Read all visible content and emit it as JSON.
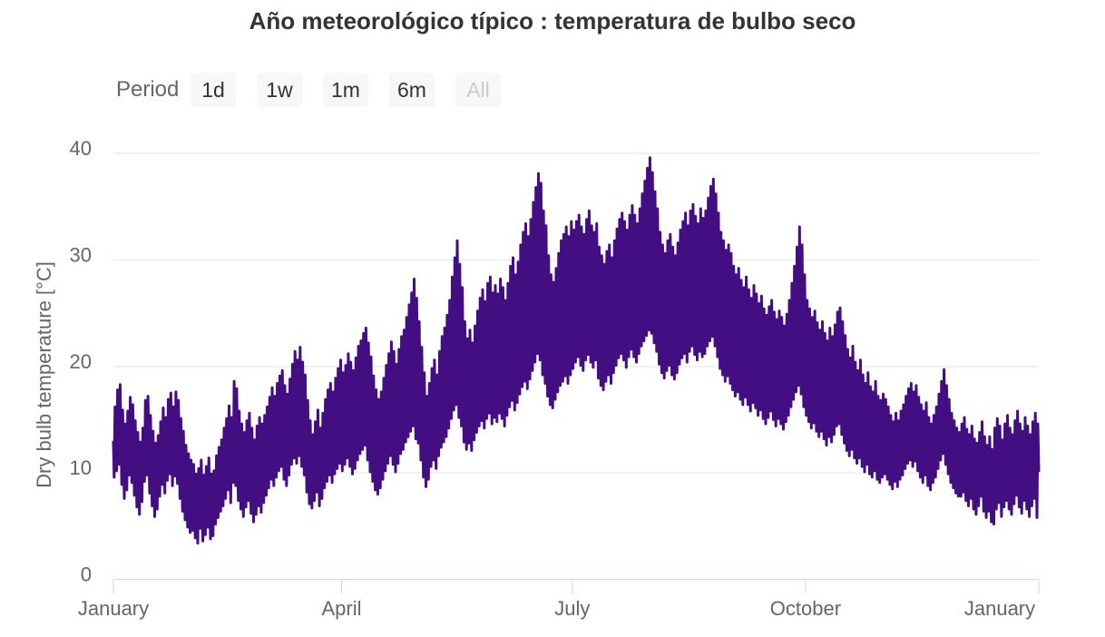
{
  "range_selector": {
    "label": "Period",
    "buttons": [
      {
        "label": "1d",
        "enabled": true
      },
      {
        "label": "1w",
        "enabled": true
      },
      {
        "label": "1m",
        "enabled": true
      },
      {
        "label": "6m",
        "enabled": true
      },
      {
        "label": "All",
        "enabled": false
      }
    ]
  },
  "colors": {
    "series": "#440E83",
    "grid": "#E6E6E6",
    "axis_line": "#CCD6EB",
    "tick_text": "#666666",
    "title_text": "#333333",
    "button_bg": "#F7F7F7",
    "button_text": "#333333",
    "button_disabled_text": "#CCCCCC",
    "background": "#FFFFFF"
  },
  "chart_data": {
    "type": "line",
    "title": "Año meteorológico típico : temperatura de bulbo seco",
    "xlabel": "",
    "ylabel": "Dry bulb temperature [°C]",
    "legend": "none",
    "grid": "horizontal-gridlines",
    "y_ticks": [
      0,
      10,
      20,
      30,
      40
    ],
    "ylim": [
      0,
      42
    ],
    "x_tick_labels": [
      "January",
      "April",
      "July",
      "October",
      "January"
    ],
    "x_tick_days": [
      0,
      90,
      181,
      273,
      365
    ],
    "x_range_days": 365,
    "series": [
      {
        "name": "Dry bulb temperature",
        "unit": "°C",
        "color": "#440E83",
        "description": "Hourly dry bulb temperature over a typical meteorological year; rendered from daily low/high envelope (one low + one high per day, index 0 = Jan 1)",
        "daily_high": [
          16.2,
          17.8,
          18.3,
          15.9,
          14.6,
          15.8,
          17.1,
          16.4,
          14.9,
          13.8,
          12.9,
          14.2,
          16.8,
          17.2,
          15.4,
          13.9,
          12.8,
          13.5,
          14.8,
          16.1,
          15.2,
          16.9,
          17.5,
          16.2,
          17.6,
          16.8,
          15.1,
          13.9,
          12.6,
          11.8,
          11.2,
          10.8,
          9.9,
          10.4,
          11.2,
          9.8,
          10.6,
          11.4,
          9.9,
          10.2,
          11.6,
          12.4,
          13.1,
          14.2,
          15.1,
          16.3,
          15.2,
          18.6,
          17.9,
          15.8,
          14.6,
          13.8,
          14.9,
          15.6,
          14.2,
          13.1,
          14.4,
          15.2,
          14.6,
          15.4,
          16.2,
          17.1,
          18.0,
          17.2,
          18.4,
          19.1,
          19.6,
          18.2,
          17.4,
          18.8,
          20.2,
          21.4,
          20.6,
          21.8,
          20.4,
          19.2,
          16.8,
          14.9,
          13.6,
          14.8,
          15.9,
          14.2,
          15.6,
          16.9,
          17.8,
          18.4,
          17.6,
          18.9,
          19.8,
          20.6,
          19.4,
          20.1,
          21.2,
          20.4,
          19.6,
          20.8,
          21.9,
          22.4,
          23.1,
          23.6,
          22.2,
          20.9,
          19.1,
          17.8,
          16.9,
          17.6,
          18.9,
          20.1,
          21.2,
          22.3,
          21.4,
          20.2,
          21.6,
          22.8,
          23.4,
          24.6,
          25.8,
          26.9,
          28.2,
          26.4,
          24.2,
          21.8,
          19.4,
          17.2,
          18.4,
          19.8,
          20.6,
          19.2,
          21.4,
          22.8,
          23.6,
          24.8,
          26.2,
          28.4,
          30.2,
          31.8,
          29.6,
          27.4,
          24.2,
          22.6,
          23.4,
          22.2,
          23.8,
          25.2,
          26.4,
          27.2,
          26.1,
          27.8,
          28.4,
          26.9,
          27.6,
          26.8,
          28.2,
          27.4,
          26.2,
          27.8,
          29.4,
          30.2,
          28.6,
          29.8,
          31.4,
          32.6,
          33.4,
          32.2,
          33.8,
          35.4,
          36.8,
          38.1,
          37.2,
          34.6,
          33.2,
          30.4,
          28.6,
          27.9,
          29.2,
          30.6,
          31.8,
          32.4,
          33.1,
          32.2,
          33.6,
          32.8,
          33.6,
          34.2,
          33.1,
          32.4,
          33.8,
          34.6,
          33.2,
          32.6,
          33.4,
          31.2,
          30.4,
          29.6,
          30.8,
          31.4,
          30.2,
          31.8,
          32.9,
          33.8,
          34.4,
          33.6,
          32.8,
          34.2,
          35.1,
          34.2,
          33.4,
          34.8,
          36.2,
          37.4,
          38.6,
          39.6,
          38.2,
          36.4,
          34.8,
          32.6,
          31.4,
          30.6,
          31.8,
          32.4,
          31.2,
          30.4,
          31.6,
          32.8,
          33.6,
          34.4,
          33.2,
          34.6,
          35.2,
          34.1,
          33.4,
          34.8,
          33.9,
          34.6,
          35.8,
          36.9,
          37.6,
          36.2,
          34.4,
          32.6,
          31.8,
          30.9,
          31.4,
          30.6,
          29.4,
          28.6,
          29.2,
          28.1,
          27.4,
          28.4,
          27.2,
          26.4,
          27.6,
          26.8,
          25.9,
          26.6,
          25.4,
          24.8,
          25.6,
          26.2,
          25.1,
          24.4,
          25.2,
          24.6,
          23.8,
          24.9,
          26.2,
          27.8,
          29.4,
          31.2,
          33.1,
          31.4,
          28.6,
          26.2,
          25.4,
          24.6,
          25.2,
          24.1,
          23.4,
          24.2,
          23.1,
          22.4,
          23.6,
          22.8,
          23.9,
          25.1,
          25.5,
          24.2,
          22.9,
          21.6,
          20.8,
          21.9,
          20.4,
          19.6,
          20.6,
          19.2,
          18.4,
          19.4,
          18.1,
          17.6,
          18.6,
          17.2,
          16.8,
          17.4,
          16.9,
          16.2,
          15.4,
          14.8,
          15.6,
          14.9,
          15.8,
          16.4,
          17.2,
          17.9,
          18.4,
          17.6,
          18.2,
          17.1,
          16.4,
          15.8,
          16.6,
          15.2,
          14.6,
          15.4,
          16.2,
          17.4,
          18.6,
          19.7,
          18.2,
          16.9,
          15.6,
          14.9,
          14.2,
          13.8,
          14.6,
          15.2,
          14.1,
          13.6,
          14.4,
          13.2,
          12.8,
          13.8,
          14.8,
          13.4,
          12.6,
          13.4,
          12.2,
          14.2,
          15.1,
          14.4,
          13.1,
          14.6,
          15.4,
          14.2,
          13.6,
          14.9,
          15.8,
          14.6,
          13.9,
          15.2,
          14.4,
          13.6,
          14.8,
          15.6,
          14.6
        ],
        "daily_low": [
          9.6,
          10.2,
          10.8,
          8.9,
          7.6,
          8.4,
          9.8,
          9.1,
          7.9,
          6.8,
          6.1,
          7.3,
          9.2,
          9.8,
          8.1,
          6.9,
          5.9,
          6.6,
          7.8,
          8.9,
          8.1,
          9.3,
          9.9,
          8.8,
          9.7,
          9.0,
          7.6,
          6.4,
          5.6,
          4.9,
          4.4,
          4.6,
          3.9,
          3.4,
          4.8,
          3.6,
          4.2,
          4.9,
          3.8,
          4.1,
          5.2,
          5.8,
          6.4,
          6.9,
          7.6,
          8.4,
          7.2,
          9.1,
          8.8,
          7.4,
          6.6,
          5.9,
          6.8,
          7.4,
          6.2,
          5.4,
          6.1,
          6.9,
          6.3,
          7.2,
          7.9,
          8.6,
          9.4,
          8.8,
          9.6,
          10.2,
          10.6,
          9.4,
          8.8,
          9.8,
          10.8,
          11.4,
          10.9,
          11.6,
          10.6,
          9.8,
          8.2,
          7.1,
          6.7,
          7.4,
          8.2,
          6.9,
          7.6,
          8.6,
          9.2,
          9.8,
          9.1,
          9.9,
          10.4,
          10.9,
          10.2,
          10.8,
          11.4,
          10.6,
          9.9,
          10.4,
          11.2,
          11.8,
          12.2,
          12.6,
          11.2,
          10.1,
          9.2,
          8.4,
          8.0,
          8.6,
          9.4,
          10.2,
          10.9,
          11.6,
          10.8,
          10.1,
          10.9,
          11.8,
          12.2,
          12.9,
          13.4,
          13.9,
          14.4,
          13.2,
          12.8,
          11.2,
          9.6,
          8.7,
          9.4,
          10.6,
          11.2,
          10.4,
          11.6,
          12.4,
          12.9,
          13.4,
          14.2,
          15.1,
          15.9,
          16.4,
          15.2,
          14.4,
          12.9,
          12.2,
          12.8,
          12.1,
          13.1,
          13.8,
          14.4,
          14.9,
          14.2,
          15.1,
          15.6,
          14.6,
          15.2,
          14.8,
          15.6,
          15.1,
          14.4,
          15.4,
          16.2,
          16.8,
          15.9,
          16.6,
          17.4,
          18.1,
          18.6,
          17.9,
          18.8,
          19.6,
          20.4,
          21.2,
          20.6,
          19.2,
          18.4,
          17.2,
          16.4,
          16.1,
          16.9,
          17.6,
          18.2,
          18.6,
          19.1,
          18.4,
          19.2,
          19.8,
          20.4,
          20.9,
          20.1,
          19.6,
          20.6,
          21.1,
          20.4,
          19.9,
          20.6,
          18.9,
          18.2,
          17.8,
          18.6,
          19.2,
          18.4,
          19.4,
          20.1,
          20.8,
          21.2,
          20.6,
          19.9,
          20.9,
          21.6,
          20.9,
          20.4,
          21.2,
          21.9,
          22.4,
          22.9,
          23.4,
          23.1,
          22.2,
          21.4,
          20.2,
          19.4,
          18.9,
          19.6,
          20.1,
          19.2,
          18.8,
          19.4,
          20.2,
          20.8,
          21.2,
          20.4,
          21.4,
          21.9,
          21.1,
          20.6,
          21.4,
          20.9,
          21.2,
          21.9,
          22.4,
          22.8,
          21.9,
          20.9,
          19.8,
          19.2,
          18.6,
          19.1,
          18.4,
          17.8,
          17.2,
          17.6,
          16.9,
          16.4,
          17.1,
          16.4,
          15.8,
          16.6,
          16.1,
          15.4,
          15.9,
          15.1,
          14.6,
          15.2,
          15.8,
          15.0,
          14.4,
          15.1,
          14.6,
          14.1,
          14.8,
          15.4,
          16.2,
          16.9,
          17.6,
          18.2,
          17.4,
          16.2,
          15.4,
          14.8,
          14.2,
          14.7,
          13.9,
          13.4,
          13.9,
          13.2,
          12.6,
          13.4,
          12.9,
          13.6,
          14.4,
          14.6,
          13.6,
          12.8,
          12.1,
          11.6,
          12.2,
          11.4,
          10.9,
          11.4,
          10.6,
          10.1,
          10.8,
          9.9,
          9.6,
          10.2,
          9.4,
          9.1,
          9.6,
          9.9,
          9.4,
          8.9,
          8.5,
          9.2,
          8.7,
          9.4,
          9.8,
          10.4,
          10.9,
          11.2,
          10.6,
          11.1,
          10.2,
          9.6,
          9.1,
          9.8,
          8.8,
          8.4,
          9.1,
          9.6,
          10.4,
          11.2,
          11.8,
          10.8,
          9.9,
          9.1,
          8.6,
          8.1,
          7.8,
          7.8,
          8.2,
          7.4,
          6.9,
          7.6,
          6.6,
          6.1,
          6.9,
          7.8,
          6.4,
          5.8,
          6.4,
          5.4,
          5.2,
          6.6,
          7.2,
          5.9,
          6.8,
          7.4,
          6.6,
          6.1,
          7.1,
          7.9,
          6.8,
          6.2,
          7.4,
          6.6,
          5.9,
          6.9,
          7.6,
          5.8
        ]
      }
    ]
  }
}
